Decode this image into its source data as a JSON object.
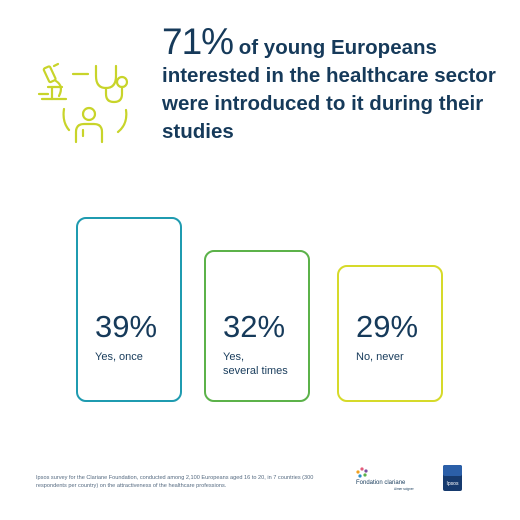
{
  "headline": {
    "stat": "71%",
    "text": " of young Europeans interested in the healthcare sector were introduced to it during their studies"
  },
  "colors": {
    "navy": "#163a5a",
    "lime": "#c8d42a",
    "teal": "#1f9bb0",
    "green": "#5cb24a",
    "yellow": "#d6da2a"
  },
  "chart_data": {
    "type": "bar",
    "unit": "%",
    "categories": [
      "Yes, once",
      "Yes,\nseveral times",
      "No, never"
    ],
    "values": [
      39,
      32,
      29
    ],
    "labels": [
      "39%",
      "32%",
      "29%"
    ]
  },
  "footnote": "Ipsos survey for the Clariane Foundation, conducted among 2,100 Europeans aged 16 to 20, in 7 countries (300 respondents per country) on the attractiveness of the healthcare professions.",
  "logos": {
    "clariane_name": "Fondation clariane",
    "clariane_tagline": "Aimer soigner",
    "ipsos": "Ipsos"
  }
}
